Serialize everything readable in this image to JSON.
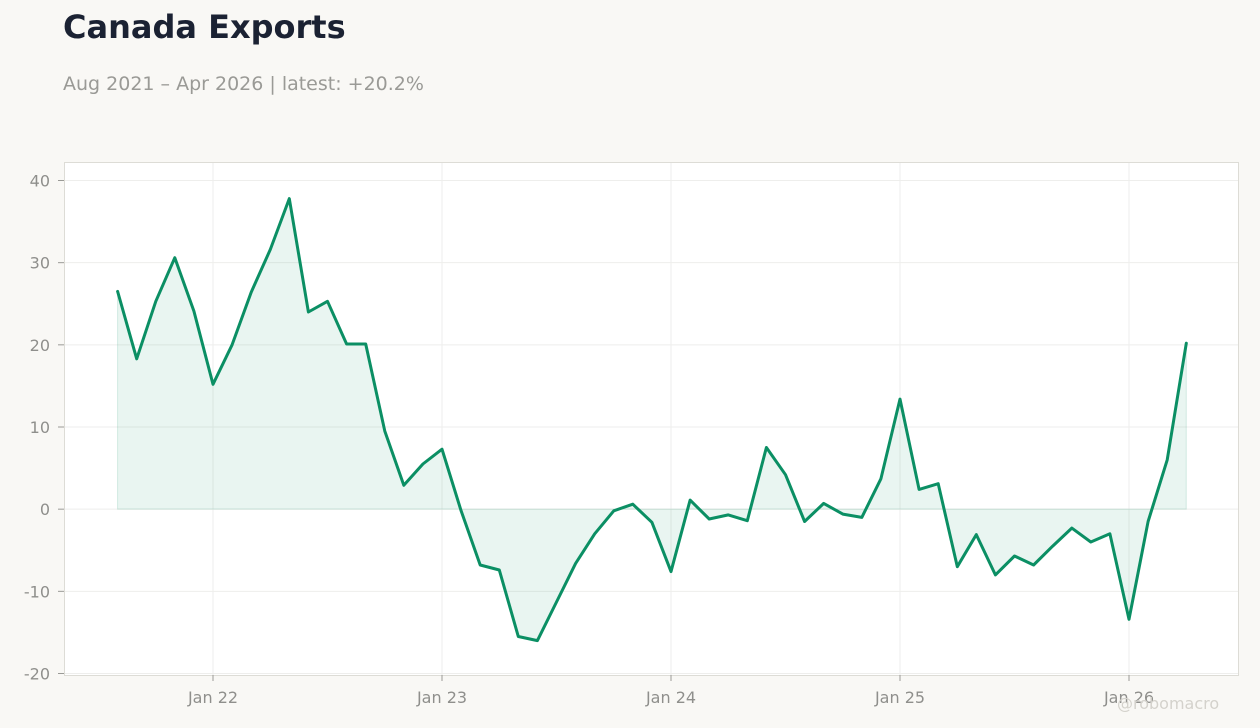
{
  "header": {
    "title": "Canada Exports",
    "subtitle": "Aug 2021 – Apr 2026 | latest: +20.2%"
  },
  "watermark": "@robomacro",
  "colors": {
    "line": "#0b8f64",
    "fill": "#0b8f64",
    "grid": "#eeeeec",
    "frame": "#dddcd6"
  },
  "chart_data": {
    "type": "area",
    "title": "Canada Exports",
    "subtitle": "Aug 2021 – Apr 2026 | latest: +20.2%",
    "xlabel": "",
    "ylabel": "",
    "ylim": [
      -20,
      40
    ],
    "xlim": [
      "2021-06",
      "2026-06"
    ],
    "yticks": [
      -20,
      -10,
      0,
      10,
      20,
      30,
      40
    ],
    "ytick_labels": [
      "-20",
      "-10",
      "0",
      "10",
      "20",
      "30",
      "40"
    ],
    "xticks": [
      "2022-01",
      "2023-01",
      "2024-01",
      "2025-01",
      "2026-01"
    ],
    "xtick_labels": [
      "Jan 22",
      "Jan 23",
      "Jan 24",
      "Jan 25",
      "Jan 26"
    ],
    "grid": true,
    "series": [
      {
        "x": [
          "2021-08",
          "2021-09",
          "2021-10",
          "2021-11",
          "2021-12",
          "2022-01",
          "2022-02",
          "2022-03",
          "2022-04",
          "2022-05",
          "2022-06",
          "2022-07",
          "2022-08",
          "2022-09",
          "2022-10",
          "2022-11",
          "2022-12",
          "2023-01",
          "2023-02",
          "2023-03",
          "2023-04",
          "2023-05",
          "2023-06",
          "2023-07",
          "2023-08",
          "2023-09",
          "2023-10",
          "2023-11",
          "2023-12",
          "2024-01",
          "2024-02",
          "2024-03",
          "2024-04",
          "2024-05",
          "2024-06",
          "2024-07",
          "2024-08",
          "2024-09",
          "2024-10",
          "2024-11",
          "2024-12",
          "2025-01",
          "2025-02",
          "2025-03",
          "2025-04",
          "2025-05",
          "2025-06",
          "2025-07",
          "2025-08",
          "2025-09",
          "2025-10",
          "2025-11",
          "2025-12",
          "2026-01",
          "2026-02",
          "2026-03",
          "2026-04"
        ],
        "values": [
          26.5,
          18.3,
          25.3,
          30.6,
          24.1,
          15.2,
          20.0,
          26.4,
          31.6,
          37.8,
          24.0,
          25.3,
          20.1,
          20.1,
          9.5,
          2.9,
          5.5,
          7.3,
          -0.2,
          -6.8,
          -7.4,
          -15.5,
          -16.0,
          -11.3,
          -6.6,
          -3.0,
          -0.2,
          0.6,
          -1.6,
          -7.6,
          1.1,
          -1.2,
          -0.7,
          -1.4,
          7.5,
          4.2,
          -1.5,
          0.7,
          -0.6,
          -1.0,
          3.7,
          13.4,
          2.4,
          3.1,
          -7.0,
          -3.1,
          -8.0,
          -5.7,
          -6.8,
          -4.5,
          -2.3,
          -4.0,
          -3.0,
          -13.4,
          -1.5,
          6.0,
          20.2
        ]
      }
    ]
  }
}
